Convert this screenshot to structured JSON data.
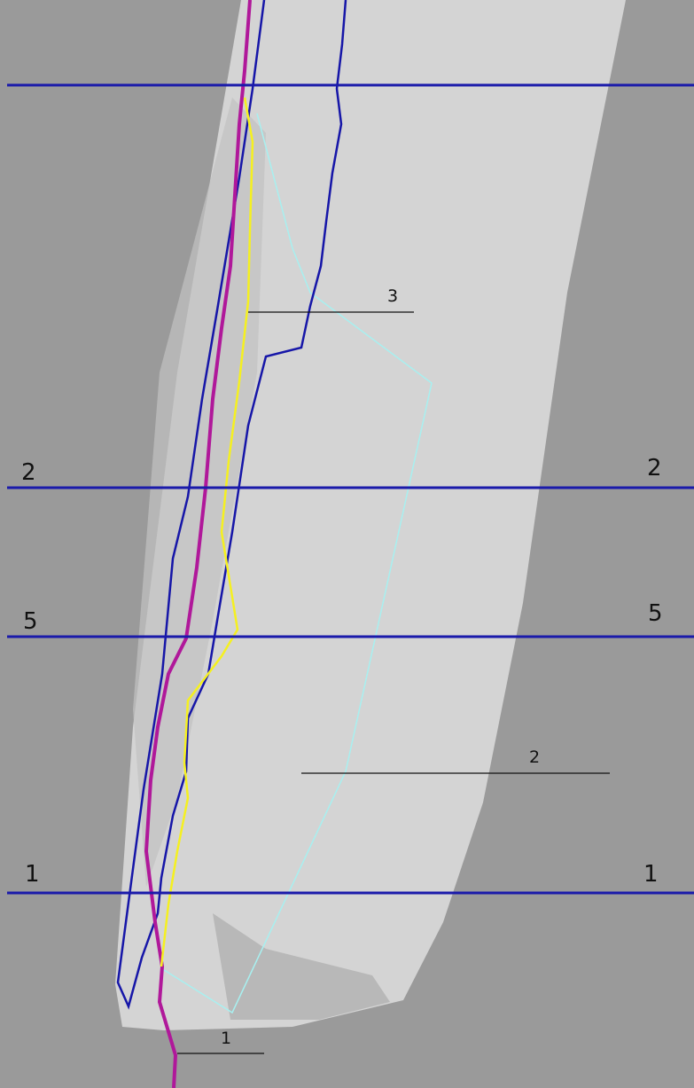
{
  "section_lines": [
    {
      "left": "2",
      "right": "2"
    },
    {
      "left": "5",
      "right": "5"
    },
    {
      "left": "1",
      "right": "1"
    }
  ],
  "callouts": [
    "3",
    "2",
    "1"
  ]
}
